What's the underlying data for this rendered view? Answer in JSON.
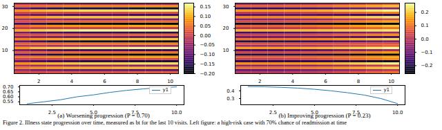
{
  "chart_data": [
    {
      "type": "heatmap",
      "x": [
        1,
        2,
        3,
        4,
        5,
        6,
        7,
        8,
        9,
        10
      ],
      "y": [
        0,
        1,
        2,
        3,
        4,
        5,
        6,
        7,
        8,
        9,
        10,
        11,
        12,
        13,
        14,
        15,
        16,
        17,
        18,
        19,
        20,
        21,
        22,
        23,
        24,
        25,
        26,
        27,
        28,
        29,
        30,
        31
      ],
      "cells": [
        [
          0.01,
          0.01,
          0.02,
          0.02,
          0.02,
          0.02,
          0.02,
          0.03,
          0.03,
          0.03
        ],
        [
          -0.06,
          -0.08,
          -0.09,
          -0.1,
          -0.1,
          -0.1,
          -0.1,
          -0.11,
          -0.11,
          -0.11
        ],
        [
          0.06,
          0.08,
          0.09,
          0.1,
          0.1,
          0.1,
          0.11,
          0.11,
          0.11,
          0.11
        ],
        [
          -0.03,
          -0.04,
          -0.04,
          -0.05,
          -0.05,
          -0.05,
          -0.05,
          -0.06,
          -0.06,
          -0.06
        ],
        [
          0.08,
          0.1,
          0.11,
          0.12,
          0.13,
          0.13,
          0.13,
          0.14,
          0.14,
          0.14
        ],
        [
          -0.09,
          -0.12,
          -0.13,
          -0.14,
          -0.15,
          -0.15,
          -0.15,
          -0.16,
          -0.16,
          -0.16
        ],
        [
          0.0,
          0.0,
          0.0,
          0.0,
          0.0,
          0.0,
          0.01,
          0.01,
          0.01,
          0.01
        ],
        [
          0.05,
          0.06,
          0.07,
          0.08,
          0.08,
          0.08,
          0.08,
          0.09,
          0.09,
          0.09
        ],
        [
          -0.11,
          -0.14,
          -0.16,
          -0.17,
          -0.18,
          -0.18,
          -0.18,
          -0.19,
          -0.19,
          -0.19
        ],
        [
          0.03,
          0.04,
          0.04,
          0.05,
          0.05,
          0.05,
          0.05,
          0.06,
          0.06,
          0.06
        ],
        [
          -0.07,
          -0.09,
          -0.11,
          -0.12,
          -0.12,
          -0.12,
          -0.12,
          -0.13,
          -0.13,
          -0.13
        ],
        [
          0.09,
          0.12,
          0.13,
          0.14,
          0.15,
          0.15,
          0.15,
          0.16,
          0.16,
          0.16
        ],
        [
          -0.02,
          -0.02,
          -0.03,
          -0.03,
          -0.03,
          -0.03,
          -0.03,
          -0.04,
          -0.04,
          -0.04
        ],
        [
          0.04,
          0.05,
          0.05,
          0.06,
          0.06,
          0.06,
          0.06,
          0.07,
          0.07,
          0.07
        ],
        [
          -0.1,
          -0.13,
          -0.15,
          -0.16,
          -0.17,
          -0.17,
          -0.17,
          -0.18,
          -0.18,
          -0.18
        ],
        [
          0.07,
          0.09,
          0.1,
          0.11,
          0.11,
          0.11,
          0.11,
          0.12,
          0.12,
          0.12
        ],
        [
          -0.05,
          -0.06,
          -0.07,
          -0.08,
          -0.08,
          -0.08,
          -0.08,
          -0.09,
          -0.09,
          -0.09
        ],
        [
          0.02,
          0.02,
          0.03,
          0.03,
          0.03,
          0.03,
          0.03,
          0.04,
          0.04,
          0.04
        ],
        [
          -0.08,
          -0.11,
          -0.12,
          -0.13,
          -0.14,
          -0.14,
          -0.14,
          -0.15,
          -0.15,
          -0.15
        ],
        [
          0.1,
          0.13,
          0.14,
          0.15,
          0.16,
          0.16,
          0.16,
          0.17,
          0.17,
          0.17
        ],
        [
          -0.01,
          -0.01,
          -0.01,
          -0.01,
          -0.01,
          -0.01,
          -0.01,
          -0.02,
          -0.02,
          -0.02
        ],
        [
          0.05,
          0.07,
          0.08,
          0.09,
          0.09,
          0.09,
          0.09,
          0.1,
          0.1,
          0.1
        ],
        [
          -0.12,
          -0.15,
          -0.17,
          -0.18,
          -0.19,
          -0.19,
          -0.19,
          -0.2,
          -0.2,
          -0.2
        ],
        [
          0.02,
          0.03,
          0.04,
          0.04,
          0.04,
          0.04,
          0.04,
          0.05,
          0.05,
          0.05
        ],
        [
          -0.04,
          -0.05,
          -0.05,
          -0.06,
          -0.06,
          -0.06,
          -0.06,
          -0.07,
          -0.07,
          -0.07
        ],
        [
          0.07,
          0.09,
          0.11,
          0.12,
          0.12,
          0.12,
          0.12,
          0.13,
          0.13,
          0.13
        ],
        [
          -0.07,
          -0.09,
          -0.1,
          -0.11,
          -0.11,
          -0.11,
          -0.11,
          -0.12,
          -0.12,
          -0.12
        ],
        [
          0.01,
          0.01,
          0.01,
          0.01,
          0.01,
          0.01,
          0.01,
          0.02,
          0.02,
          0.02
        ],
        [
          0.08,
          0.11,
          0.12,
          0.13,
          0.14,
          0.14,
          0.14,
          0.15,
          0.15,
          0.15
        ],
        [
          -0.1,
          -0.13,
          -0.15,
          -0.16,
          -0.16,
          -0.16,
          -0.16,
          -0.17,
          -0.17,
          -0.17
        ],
        [
          0.04,
          0.05,
          0.06,
          0.07,
          0.07,
          0.07,
          0.07,
          0.08,
          0.08,
          0.08
        ],
        [
          -0.02,
          -0.03,
          -0.04,
          -0.04,
          -0.04,
          -0.04,
          -0.04,
          -0.05,
          -0.05,
          -0.05
        ]
      ],
      "color": "inferno",
      "xlim": [
        0.5,
        10.5
      ],
      "ylim": [
        -0.5,
        31.5
      ],
      "xticks": [
        2,
        4,
        6,
        8,
        10
      ],
      "yticks": [
        10,
        20,
        30
      ],
      "colorbar": {
        "range": [
          -0.2,
          0.17
        ],
        "ticks": [
          0.15,
          {
            "value": 0.1,
            "label": "0.10"
          },
          0.05,
          {
            "value": 0,
            "label": "0.00"
          },
          {
            "value": -0.05,
            "label": "−0.05"
          },
          {
            "value": -0.1,
            "label": "−0.10"
          },
          {
            "value": -0.15,
            "label": "−0.15"
          },
          {
            "value": -0.2,
            "label": "−0.20"
          }
        ]
      }
    },
    {
      "type": "line",
      "x": [
        1,
        2,
        3,
        4,
        5,
        6,
        7,
        8,
        9,
        10
      ],
      "series": [
        {
          "name": "y1",
          "color": "#1f77b4",
          "values": [
            0.53,
            0.55,
            0.57,
            0.6,
            0.62,
            0.645,
            0.665,
            0.68,
            0.692,
            0.7
          ]
        }
      ],
      "xlim": [
        0.55,
        10.45
      ],
      "ylim": [
        0.52,
        0.715
      ],
      "xticks": [
        2.5,
        {
          "value": 5,
          "label": "5.0"
        },
        7.5,
        {
          "value": 10,
          "label": "10.0"
        }
      ],
      "yticks": [
        0.55,
        {
          "value": 0.6,
          "label": "0.60"
        },
        0.65,
        {
          "value": 0.7,
          "label": "0.70"
        }
      ],
      "legend": "upper right",
      "subtitle": "(a) Worsening progression (P = 0.70)"
    },
    {
      "type": "heatmap",
      "x": [
        1,
        2,
        3,
        4,
        5,
        6,
        7,
        8,
        9,
        10
      ],
      "y": [
        0,
        1,
        2,
        3,
        4,
        5,
        6,
        7,
        8,
        9,
        10,
        11,
        12,
        13,
        14,
        15,
        16,
        17,
        18,
        19,
        20,
        21,
        22,
        23,
        24,
        25,
        26,
        27,
        28,
        29,
        30,
        31
      ],
      "cells": [
        [
          0.0,
          0.0,
          0.0,
          0.01,
          0.01,
          0.02,
          0.04,
          0.06,
          0.08,
          0.1
        ],
        [
          -0.12,
          -0.12,
          -0.12,
          -0.11,
          -0.1,
          -0.09,
          -0.07,
          -0.05,
          -0.03,
          -0.01
        ],
        [
          0.1,
          0.1,
          0.1,
          0.11,
          0.12,
          0.13,
          0.15,
          0.17,
          0.19,
          0.21
        ],
        [
          -0.05,
          -0.05,
          -0.05,
          -0.05,
          -0.05,
          -0.04,
          -0.03,
          -0.01,
          0.01,
          0.03
        ],
        [
          0.14,
          0.14,
          0.14,
          0.15,
          0.16,
          0.17,
          0.19,
          0.21,
          0.23,
          0.25
        ],
        [
          -0.18,
          -0.18,
          -0.18,
          -0.18,
          -0.18,
          -0.18,
          -0.19,
          -0.2,
          -0.21,
          -0.22
        ],
        [
          0.02,
          0.02,
          0.02,
          0.03,
          0.04,
          0.05,
          0.07,
          0.09,
          0.11,
          0.13
        ],
        [
          0.07,
          0.07,
          0.07,
          0.08,
          0.08,
          0.09,
          0.1,
          0.12,
          0.14,
          0.16
        ],
        [
          -0.2,
          -0.2,
          -0.2,
          -0.2,
          -0.2,
          -0.21,
          -0.22,
          -0.23,
          -0.24,
          -0.25
        ],
        [
          0.04,
          0.04,
          0.04,
          0.05,
          0.06,
          0.07,
          0.09,
          0.11,
          0.13,
          0.15
        ],
        [
          -0.14,
          -0.14,
          -0.14,
          -0.13,
          -0.12,
          -0.11,
          -0.09,
          -0.07,
          -0.05,
          -0.03
        ],
        [
          0.16,
          0.16,
          0.16,
          0.17,
          0.18,
          0.19,
          0.2,
          0.22,
          0.24,
          0.26
        ],
        [
          -0.03,
          -0.03,
          -0.03,
          -0.02,
          -0.01,
          0.0,
          0.02,
          0.04,
          0.06,
          0.08
        ],
        [
          0.06,
          0.06,
          0.06,
          0.06,
          0.06,
          0.06,
          0.06,
          0.06,
          0.06,
          0.06
        ],
        [
          -0.19,
          -0.19,
          -0.19,
          -0.18,
          -0.17,
          -0.16,
          -0.14,
          -0.12,
          -0.1,
          -0.08
        ],
        [
          0.11,
          0.11,
          0.11,
          0.12,
          0.13,
          0.14,
          0.16,
          0.18,
          0.2,
          0.22
        ],
        [
          -0.09,
          -0.09,
          -0.09,
          -0.09,
          -0.09,
          -0.1,
          -0.11,
          -0.12,
          -0.13,
          -0.14
        ],
        [
          0.03,
          0.03,
          0.03,
          0.04,
          0.05,
          0.06,
          0.08,
          0.1,
          0.12,
          0.14
        ],
        [
          -0.15,
          -0.15,
          -0.15,
          -0.14,
          -0.13,
          -0.12,
          -0.1,
          -0.08,
          -0.06,
          -0.04
        ],
        [
          0.18,
          0.18,
          0.18,
          0.19,
          0.19,
          0.2,
          0.21,
          0.22,
          0.23,
          0.24
        ],
        [
          -0.01,
          -0.01,
          -0.01,
          0.0,
          0.01,
          0.02,
          0.04,
          0.06,
          0.08,
          0.1
        ],
        [
          0.09,
          0.09,
          0.09,
          0.1,
          0.11,
          0.12,
          0.14,
          0.16,
          0.18,
          0.2
        ],
        [
          -0.22,
          -0.22,
          -0.22,
          -0.22,
          -0.22,
          -0.23,
          -0.24,
          -0.25,
          -0.25,
          -0.26
        ],
        [
          0.05,
          0.05,
          0.05,
          0.06,
          0.07,
          0.08,
          0.1,
          0.12,
          0.14,
          0.16
        ],
        [
          -0.07,
          -0.07,
          -0.07,
          -0.06,
          -0.05,
          -0.04,
          -0.02,
          0.0,
          0.02,
          0.04
        ],
        [
          0.13,
          0.13,
          0.13,
          0.14,
          0.15,
          0.16,
          0.18,
          0.2,
          0.22,
          0.24
        ],
        [
          -0.12,
          -0.12,
          -0.12,
          -0.12,
          -0.12,
          -0.13,
          -0.14,
          -0.15,
          -0.16,
          -0.17
        ],
        [
          0.01,
          0.01,
          0.01,
          0.02,
          0.03,
          0.04,
          0.06,
          0.08,
          0.1,
          0.12
        ],
        [
          0.15,
          0.15,
          0.15,
          0.16,
          0.17,
          0.18,
          0.2,
          0.22,
          0.24,
          0.26
        ],
        [
          -0.17,
          -0.17,
          -0.17,
          -0.16,
          -0.15,
          -0.14,
          -0.12,
          -0.1,
          -0.08,
          -0.06
        ],
        [
          0.08,
          0.08,
          0.08,
          0.09,
          0.1,
          0.11,
          0.13,
          0.15,
          0.17,
          0.19
        ],
        [
          -0.04,
          -0.04,
          -0.04,
          -0.03,
          -0.02,
          -0.01,
          0.01,
          0.03,
          0.05,
          0.07
        ]
      ],
      "color": "inferno",
      "xlim": [
        0.5,
        10.5
      ],
      "ylim": [
        -0.5,
        31.5
      ],
      "xticks": [
        2,
        4,
        6,
        8,
        10
      ],
      "yticks": [
        10,
        20,
        30
      ],
      "colorbar": {
        "range": [
          -0.26,
          0.27
        ],
        "ticks": [
          0.2,
          0.1,
          {
            "value": 0,
            "label": "0.0"
          },
          {
            "value": -0.1,
            "label": "−0.1"
          },
          {
            "value": -0.2,
            "label": "−0.2"
          }
        ]
      }
    },
    {
      "type": "line",
      "x": [
        1,
        2,
        3,
        4,
        5,
        6,
        7,
        8,
        9,
        10
      ],
      "series": [
        {
          "name": "y1",
          "color": "#1f77b4",
          "values": [
            0.455,
            0.452,
            0.445,
            0.435,
            0.42,
            0.4,
            0.375,
            0.345,
            0.3,
            0.235
          ]
        }
      ],
      "xlim": [
        0.55,
        10.45
      ],
      "ylim": [
        0.22,
        0.47
      ],
      "xticks": [
        2.5,
        {
          "value": 5,
          "label": "5.0"
        },
        7.5,
        {
          "value": 10,
          "label": "10.0"
        }
      ],
      "yticks": [
        0.3,
        0.4
      ],
      "legend": "upper right",
      "subtitle": "(b) Improving progression (P = 0.23)"
    }
  ],
  "caption": "Figure 2.  Illness state progression over time, measured as bt for the last 10 visits. Left figure: a high-risk case with 70% chance of readmission at time"
}
